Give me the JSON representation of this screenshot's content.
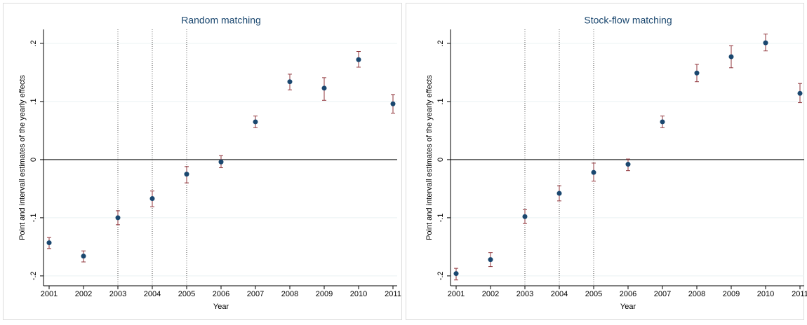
{
  "chart_data": [
    {
      "type": "errorbar",
      "title": "Random matching",
      "x_label": "Year",
      "y_label": "Point and intervall estimates of the yearly effects",
      "x": [
        2001,
        2002,
        2003,
        2004,
        2005,
        2006,
        2007,
        2008,
        2009,
        2010,
        2011
      ],
      "values": [
        -0.143,
        -0.166,
        -0.1,
        -0.067,
        -0.025,
        -0.004,
        0.065,
        0.134,
        0.123,
        0.172,
        0.096
      ],
      "lower": [
        -0.153,
        -0.176,
        -0.112,
        -0.081,
        -0.04,
        -0.014,
        0.055,
        0.12,
        0.102,
        0.159,
        0.08
      ],
      "upper": [
        -0.134,
        -0.157,
        -0.088,
        -0.054,
        -0.012,
        0.007,
        0.075,
        0.147,
        0.141,
        0.186,
        0.112
      ],
      "color": "#1a476f",
      "bar_color": "#90353b",
      "xlim": [
        2001,
        2011
      ],
      "xticks": [
        2001,
        2002,
        2003,
        2004,
        2005,
        2006,
        2007,
        2008,
        2009,
        2010,
        2011
      ],
      "ylim": [
        -0.217,
        0.224
      ],
      "yticks": [
        {
          "value": -0.2,
          "label": "-.2"
        },
        {
          "value": -0.1,
          "label": "-.1"
        },
        0,
        {
          "value": 0.1,
          "label": ".1"
        },
        {
          "value": 0.2,
          "label": ".2"
        }
      ],
      "grid": true,
      "reference_lines_x": [
        2003,
        2004,
        2005
      ],
      "reference_line_y": 0
    },
    {
      "type": "errorbar",
      "title": "Stock-flow matching",
      "x_label": "Year",
      "y_label": "Point and intervall estimates of the yearly effects",
      "x": [
        2001,
        2002,
        2003,
        2004,
        2005,
        2006,
        2007,
        2008,
        2009,
        2010,
        2011
      ],
      "values": [
        -0.196,
        -0.172,
        -0.098,
        -0.058,
        -0.022,
        -0.008,
        0.065,
        0.149,
        0.177,
        0.201,
        0.114
      ],
      "lower": [
        -0.207,
        -0.184,
        -0.11,
        -0.071,
        -0.037,
        -0.019,
        0.055,
        0.134,
        0.158,
        0.187,
        0.098
      ],
      "upper": [
        -0.187,
        -0.16,
        -0.086,
        -0.045,
        -0.006,
        0.001,
        0.075,
        0.164,
        0.196,
        0.216,
        0.131
      ],
      "color": "#1a476f",
      "bar_color": "#90353b",
      "xlim": [
        2001,
        2011
      ],
      "xticks": [
        2001,
        2002,
        2003,
        2004,
        2005,
        2006,
        2007,
        2008,
        2009,
        2010,
        2011
      ],
      "ylim": [
        -0.217,
        0.224
      ],
      "yticks": [
        {
          "value": -0.2,
          "label": "-.2"
        },
        {
          "value": -0.1,
          "label": "-.1"
        },
        0,
        {
          "value": 0.1,
          "label": ".1"
        },
        {
          "value": 0.2,
          "label": ".2"
        }
      ],
      "grid": true,
      "reference_lines_x": [
        2003,
        2004,
        2005
      ],
      "reference_line_y": 0
    }
  ]
}
